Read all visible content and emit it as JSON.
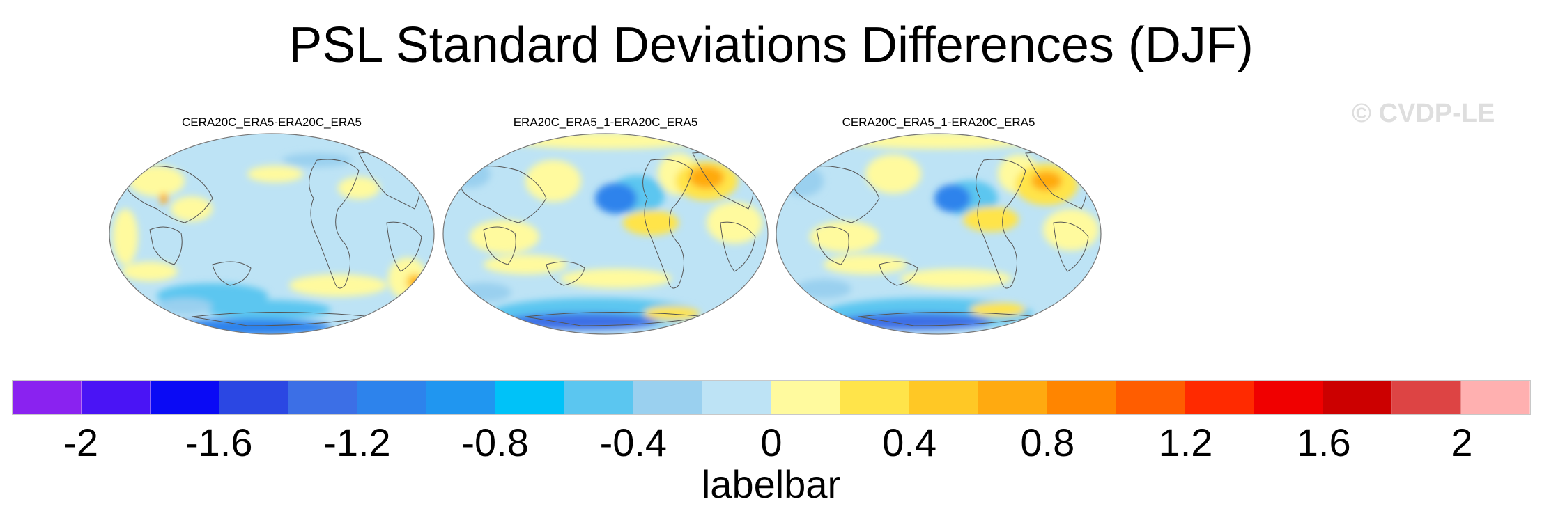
{
  "title": "PSL Standard Deviations Differences (DJF)",
  "watermark": "© CVDP-LE",
  "panels": [
    {
      "title": "CERA20C_ERA5-ERA20C_ERA5",
      "pattern": "cera_minus_era"
    },
    {
      "title": "ERA20C_ERA5_1-ERA20C_ERA5",
      "pattern": "era1_minus_era"
    },
    {
      "title": "CERA20C_ERA5_1-ERA20C_ERA5",
      "pattern": "cera1_minus_era"
    }
  ],
  "labelbar": {
    "title": "labelbar",
    "colors": [
      "#8a22f0",
      "#4a14f5",
      "#0a0af5",
      "#2b47e3",
      "#3c6fe6",
      "#2d83ec",
      "#2096f0",
      "#00c2f8",
      "#5bc6f0",
      "#9ad0ef",
      "#bde3f5",
      "#fffa9e",
      "#ffe44a",
      "#ffc825",
      "#ffaa10",
      "#ff8500",
      "#ff5d00",
      "#ff2a00",
      "#f00000",
      "#cc0000",
      "#dd4444",
      "#ffb0b0"
    ],
    "tick_labels": [
      "-2",
      "-1.6",
      "-1.2",
      "-0.8",
      "-0.4",
      "0",
      "0.4",
      "0.8",
      "1.2",
      "1.6",
      "2"
    ],
    "tick_boundary_index": [
      1,
      3,
      5,
      7,
      9,
      11,
      13,
      15,
      17,
      19,
      21
    ]
  }
}
